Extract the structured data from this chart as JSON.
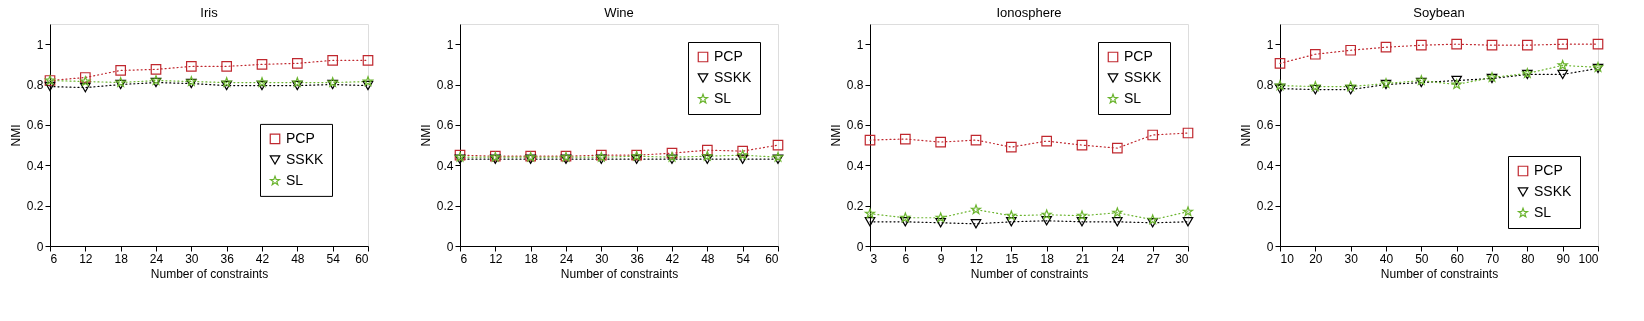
{
  "chart_data": [
    {
      "type": "line",
      "title": "Iris",
      "xlabel": "Number of constraints",
      "ylabel": "NMI",
      "x": [
        6,
        12,
        18,
        24,
        30,
        36,
        42,
        48,
        54,
        60
      ],
      "xlim": [
        6,
        60
      ],
      "xticks": [
        6,
        12,
        18,
        24,
        30,
        36,
        42,
        48,
        54,
        60
      ],
      "ylim": [
        0,
        1.1
      ],
      "yticks": [
        0,
        0.2,
        0.4,
        0.6,
        0.8,
        1
      ],
      "grid": false,
      "legend": "right",
      "line_style": "dotted",
      "series": [
        {
          "name": "PCP",
          "color": "#c0282f",
          "marker": "square",
          "values": [
            0.82,
            0.835,
            0.87,
            0.875,
            0.89,
            0.89,
            0.9,
            0.905,
            0.92,
            0.92
          ]
        },
        {
          "name": "SSKK",
          "color": "#000000",
          "marker": "triangle",
          "values": [
            0.79,
            0.785,
            0.8,
            0.81,
            0.805,
            0.795,
            0.795,
            0.795,
            0.8,
            0.795
          ]
        },
        {
          "name": "SL",
          "color": "#6ab42d",
          "marker": "star",
          "values": [
            0.82,
            0.815,
            0.81,
            0.82,
            0.815,
            0.81,
            0.81,
            0.81,
            0.81,
            0.815
          ]
        }
      ]
    },
    {
      "type": "line",
      "title": "Wine",
      "xlabel": "Number of constraints",
      "ylabel": "NMI",
      "x": [
        6,
        12,
        18,
        24,
        30,
        36,
        42,
        48,
        54,
        60
      ],
      "xlim": [
        6,
        60
      ],
      "xticks": [
        6,
        12,
        18,
        24,
        30,
        36,
        42,
        48,
        54,
        60
      ],
      "ylim": [
        0,
        1.1
      ],
      "yticks": [
        0,
        0.2,
        0.4,
        0.6,
        0.8,
        1
      ],
      "grid": false,
      "legend": "top right",
      "line_style": "dotted",
      "series": [
        {
          "name": "PCP",
          "color": "#c0282f",
          "marker": "square",
          "values": [
            0.45,
            0.445,
            0.445,
            0.445,
            0.45,
            0.45,
            0.46,
            0.475,
            0.47,
            0.5
          ]
        },
        {
          "name": "SSKK",
          "color": "#000000",
          "marker": "triangle",
          "values": [
            0.43,
            0.43,
            0.43,
            0.43,
            0.43,
            0.43,
            0.43,
            0.43,
            0.43,
            0.43
          ]
        },
        {
          "name": "SL",
          "color": "#6ab42d",
          "marker": "star",
          "values": [
            0.44,
            0.44,
            0.44,
            0.44,
            0.44,
            0.445,
            0.44,
            0.445,
            0.45,
            0.44
          ]
        }
      ]
    },
    {
      "type": "line",
      "title": "Ionosphere",
      "xlabel": "Number of constraints",
      "ylabel": "NMI",
      "x": [
        3,
        6,
        9,
        12,
        15,
        18,
        21,
        24,
        27,
        30
      ],
      "xlim": [
        3,
        30
      ],
      "xticks": [
        3,
        6,
        9,
        12,
        15,
        18,
        21,
        24,
        27,
        30
      ],
      "ylim": [
        0,
        1.1
      ],
      "yticks": [
        0,
        0.2,
        0.4,
        0.6,
        0.8,
        1
      ],
      "grid": false,
      "legend": "top right",
      "line_style": "dotted",
      "series": [
        {
          "name": "PCP",
          "color": "#c0282f",
          "marker": "square",
          "values": [
            0.525,
            0.53,
            0.515,
            0.525,
            0.49,
            0.52,
            0.5,
            0.485,
            0.55,
            0.56
          ]
        },
        {
          "name": "SSKK",
          "color": "#000000",
          "marker": "triangle",
          "values": [
            0.12,
            0.12,
            0.115,
            0.11,
            0.12,
            0.125,
            0.12,
            0.12,
            0.115,
            0.12
          ]
        },
        {
          "name": "SL",
          "color": "#6ab42d",
          "marker": "star",
          "values": [
            0.16,
            0.14,
            0.14,
            0.18,
            0.15,
            0.155,
            0.15,
            0.165,
            0.13,
            0.17
          ]
        }
      ]
    },
    {
      "type": "line",
      "title": "Soybean",
      "xlabel": "Number of constraints",
      "ylabel": "NMI",
      "x": [
        10,
        20,
        30,
        40,
        50,
        60,
        70,
        80,
        90,
        100
      ],
      "xlim": [
        10,
        100
      ],
      "xticks": [
        10,
        20,
        30,
        40,
        50,
        60,
        70,
        80,
        90,
        100
      ],
      "ylim": [
        0,
        1.1
      ],
      "yticks": [
        0,
        0.2,
        0.4,
        0.6,
        0.8,
        1
      ],
      "grid": false,
      "legend": "bottom right",
      "line_style": "dotted",
      "series": [
        {
          "name": "PCP",
          "color": "#c0282f",
          "marker": "square",
          "values": [
            0.905,
            0.95,
            0.97,
            0.985,
            0.995,
            1.0,
            0.995,
            0.995,
            1.0,
            1.0
          ]
        },
        {
          "name": "SSKK",
          "color": "#000000",
          "marker": "triangle",
          "values": [
            0.78,
            0.775,
            0.775,
            0.8,
            0.81,
            0.82,
            0.83,
            0.85,
            0.85,
            0.88
          ]
        },
        {
          "name": "SL",
          "color": "#6ab42d",
          "marker": "star",
          "values": [
            0.795,
            0.79,
            0.79,
            0.805,
            0.82,
            0.8,
            0.835,
            0.855,
            0.895,
            0.885
          ]
        }
      ]
    }
  ]
}
